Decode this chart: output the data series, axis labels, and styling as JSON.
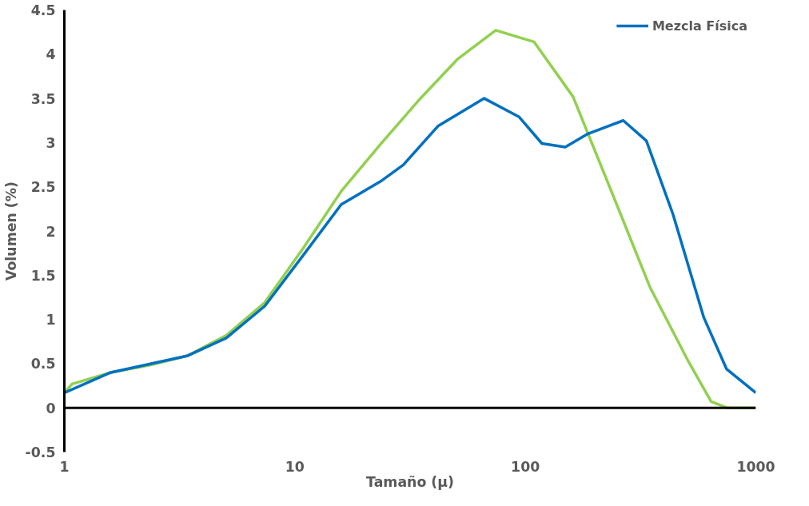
{
  "chart_data": {
    "type": "line",
    "xlabel": "Tamaño (μ)",
    "ylabel": "Volumen (%)",
    "log": "x",
    "xlim": [
      1,
      1000
    ],
    "ylim": [
      -0.5,
      4.5
    ],
    "xticks": [
      1,
      10,
      100,
      1000
    ],
    "yticks": [
      -0.5,
      0,
      0.5,
      1,
      1.5,
      2,
      2.5,
      3,
      3.5,
      4,
      4.5
    ],
    "grid": false,
    "ref_lines": [
      {
        "axis": "y",
        "value": 0,
        "color": "#000000"
      }
    ],
    "legend": "top right",
    "line_style": "solid",
    "marker": "none",
    "series": [
      {
        "color": "#92d050",
        "x": [
          1,
          1.08,
          1.59,
          2.33,
          3.43,
          5.04,
          7.4,
          10.9,
          15.9,
          23.5,
          34.5,
          50.6,
          74.4,
          109,
          161,
          237,
          348,
          511,
          640,
          750,
          1000
        ],
        "values": [
          0.17,
          0.27,
          0.4,
          0.48,
          0.59,
          0.82,
          1.19,
          1.81,
          2.45,
          2.98,
          3.48,
          3.94,
          4.27,
          4.14,
          3.52,
          2.44,
          1.36,
          0.52,
          0.07,
          0,
          0
        ]
      },
      {
        "name": "Mezcla Física",
        "color": "#0070c0",
        "x": [
          1,
          1.59,
          3.43,
          5.04,
          7.4,
          10.9,
          15.9,
          23.5,
          29.6,
          41.9,
          66.3,
          94,
          118,
          149,
          187,
          266,
          335,
          437,
          595,
          746,
          1000
        ],
        "values": [
          0.17,
          0.4,
          0.59,
          0.79,
          1.15,
          1.73,
          2.3,
          2.56,
          2.75,
          3.19,
          3.5,
          3.29,
          2.99,
          2.95,
          3.1,
          3.25,
          3.02,
          2.19,
          1.02,
          0.44,
          0.17
        ]
      }
    ]
  }
}
